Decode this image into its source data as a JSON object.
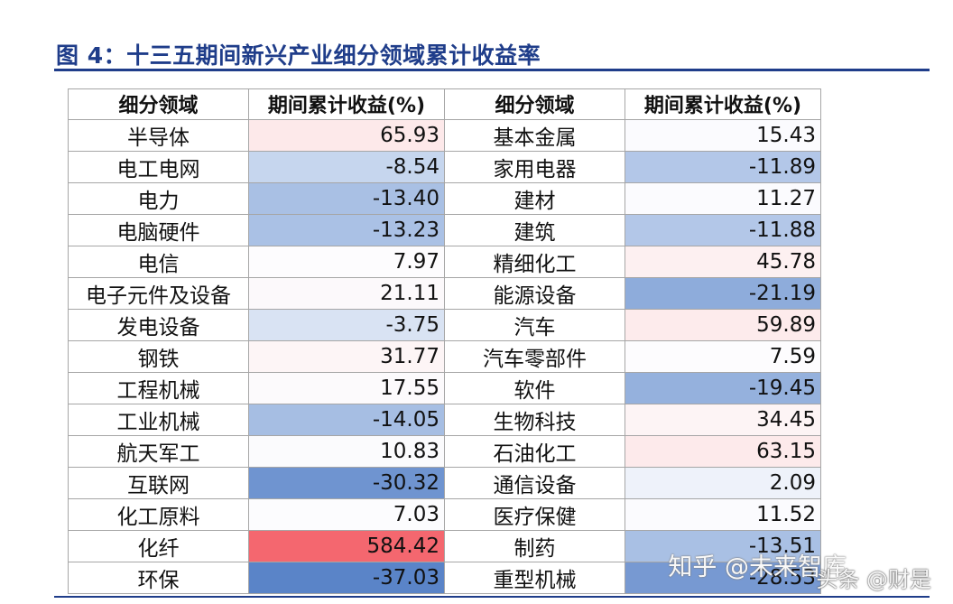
{
  "title": "图 4：十三五期间新兴产业细分领域累计收益率",
  "headers": [
    "细分领域",
    "期间累计收益(%)",
    "细分领域",
    "期间累计收益(%)"
  ],
  "rows": [
    {
      "left": {
        "name": "半导体",
        "value": "65.93",
        "color": "#fde9ea"
      },
      "right": {
        "name": "基本金属",
        "value": "15.43",
        "color": "#fbfbfe"
      }
    },
    {
      "left": {
        "name": "电工电网",
        "value": "-8.54",
        "color": "#c6d6ee"
      },
      "right": {
        "name": "家用电器",
        "value": "-11.89",
        "color": "#b3c7e8"
      }
    },
    {
      "left": {
        "name": "电力",
        "value": "-13.40",
        "color": "#a9c0e4"
      },
      "right": {
        "name": "建材",
        "value": "11.27",
        "color": "#fbfbfe"
      }
    },
    {
      "left": {
        "name": "电脑硬件",
        "value": "-13.23",
        "color": "#aac1e5"
      },
      "right": {
        "name": "建筑",
        "value": "-11.88",
        "color": "#b3c7e8"
      }
    },
    {
      "left": {
        "name": "电信",
        "value": "7.97",
        "color": "#fdfcfe"
      },
      "right": {
        "name": "精细化工",
        "value": "45.78",
        "color": "#fdf0f1"
      }
    },
    {
      "left": {
        "name": "电子元件及设备",
        "value": "21.11",
        "color": "#fcf9fb"
      },
      "right": {
        "name": "能源设备",
        "value": "-21.19",
        "color": "#8eacdb"
      }
    },
    {
      "left": {
        "name": "发电设备",
        "value": "-3.75",
        "color": "#d9e3f3"
      },
      "right": {
        "name": "汽车",
        "value": "59.89",
        "color": "#fdebec"
      }
    },
    {
      "left": {
        "name": "钢铁",
        "value": "31.77",
        "color": "#fdf5f6"
      },
      "right": {
        "name": "汽车零部件",
        "value": "7.59",
        "color": "#fdfcfe"
      }
    },
    {
      "left": {
        "name": "工程机械",
        "value": "17.55",
        "color": "#fcfafc"
      },
      "right": {
        "name": "软件",
        "value": "-19.45",
        "color": "#95b1dd"
      }
    },
    {
      "left": {
        "name": "工业机械",
        "value": "-14.05",
        "color": "#a6bee3"
      },
      "right": {
        "name": "生物科技",
        "value": "34.45",
        "color": "#fdf4f5"
      }
    },
    {
      "left": {
        "name": "航天军工",
        "value": "10.83",
        "color": "#fbfbfd"
      },
      "right": {
        "name": "石油化工",
        "value": "63.15",
        "color": "#fdeaeb"
      }
    },
    {
      "left": {
        "name": "互联网",
        "value": "-30.32",
        "color": "#6f94d0"
      },
      "right": {
        "name": "通信设备",
        "value": "2.09",
        "color": "#eef2fa"
      }
    },
    {
      "left": {
        "name": "化工原料",
        "value": "7.03",
        "color": "#fcfcfe"
      },
      "right": {
        "name": "医疗保健",
        "value": "11.52",
        "color": "#fbfbfe"
      }
    },
    {
      "left": {
        "name": "化纤",
        "value": "584.42",
        "color": "#f4676f"
      },
      "right": {
        "name": "制药",
        "value": "-13.51",
        "color": "#a9c0e4"
      }
    },
    {
      "left": {
        "name": "环保",
        "value": "-37.03",
        "color": "#5a84c8"
      },
      "right": {
        "name": "重型机械",
        "value": "-28.53",
        "color": "#7799d2"
      }
    }
  ],
  "watermarks": [
    "知乎 @未来智库",
    "头条 @财是"
  ]
}
